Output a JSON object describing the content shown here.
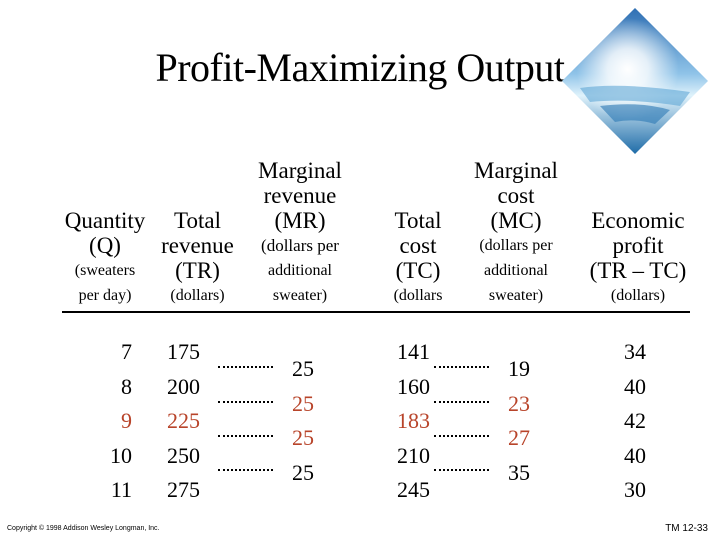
{
  "slide": {
    "title": "Profit-Maximizing Output",
    "copyright": "Copyright © 1998 Addison Wesley Longman, Inc.",
    "slide_number": "TM 12-33"
  },
  "headers": {
    "quantity": [
      "Quantity",
      "(Q)",
      "(sweaters",
      "per day)"
    ],
    "total_revenue": [
      "Total",
      "revenue",
      "(TR)",
      "(dollars)"
    ],
    "marginal_revenue": [
      "Marginal",
      "revenue",
      "(MR)",
      "(dollars per",
      "additional",
      "sweater)"
    ],
    "total_cost": [
      "Total",
      "cost",
      "(TC)",
      "(dollars"
    ],
    "marginal_cost": [
      "Marginal",
      "cost",
      "(MC)",
      "(dollars per",
      "additional",
      "sweater)"
    ],
    "economic_profit": [
      "Economic",
      "profit",
      "(TR – TC)",
      "(dollars)"
    ]
  },
  "table": {
    "quantity": [
      "7",
      "8",
      "9",
      "10",
      "11"
    ],
    "total_revenue": [
      "175",
      "200",
      "225",
      "250",
      "275"
    ],
    "marginal_revenue": [
      "25",
      "25",
      "25",
      "25"
    ],
    "total_cost": [
      "141",
      "160",
      "183",
      "210",
      "245"
    ],
    "marginal_cost": [
      "19",
      "23",
      "27",
      "35"
    ],
    "economic_profit": [
      "34",
      "40",
      "42",
      "40",
      "30"
    ]
  },
  "highlight_color": "#b8442a"
}
